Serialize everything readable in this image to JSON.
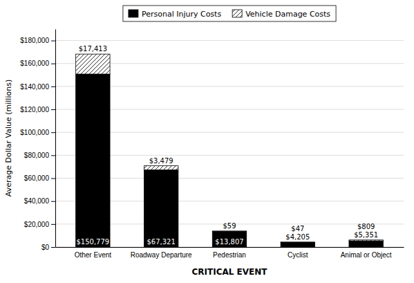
{
  "chart_data": {
    "type": "bar",
    "stacked": true,
    "categories": [
      "Other Event",
      "Roadway Departure",
      "Pedestrian",
      "Cyclist",
      "Animal or Object"
    ],
    "series": [
      {
        "name": "Personal Injury Costs",
        "color": "#000000",
        "values": [
          150779,
          67321,
          13807,
          4205,
          5351
        ],
        "value_labels": [
          "$150,779",
          "$67,321",
          "$13,807",
          "$4,205",
          "$5,351"
        ]
      },
      {
        "name": "Vehicle Damage Costs",
        "color": "#ffffff",
        "values": [
          17413,
          3479,
          59,
          47,
          809
        ],
        "value_labels": [
          "$17,413",
          "$3,479",
          "$59",
          "$47",
          "$809"
        ]
      }
    ],
    "xlabel": "CRITICAL EVENT",
    "ylabel": "Average Dollar Value (millions)",
    "ylim": [
      0,
      190000
    ],
    "yticks": [
      {
        "value": 0,
        "label": "$0"
      },
      {
        "value": 20000,
        "label": "$20,000"
      },
      {
        "value": 40000,
        "label": "$40,000"
      },
      {
        "value": 60000,
        "label": "$60,000"
      },
      {
        "value": 80000,
        "label": "$80,000"
      },
      {
        "value": 100000,
        "label": "$100,000"
      },
      {
        "value": 120000,
        "label": "$120,000"
      },
      {
        "value": 140000,
        "label": "$140,000"
      },
      {
        "value": 160000,
        "label": "$160,000"
      },
      {
        "value": 180000,
        "label": "$180,000"
      }
    ],
    "grid": true,
    "legend": "top",
    "data_labels": true
  }
}
